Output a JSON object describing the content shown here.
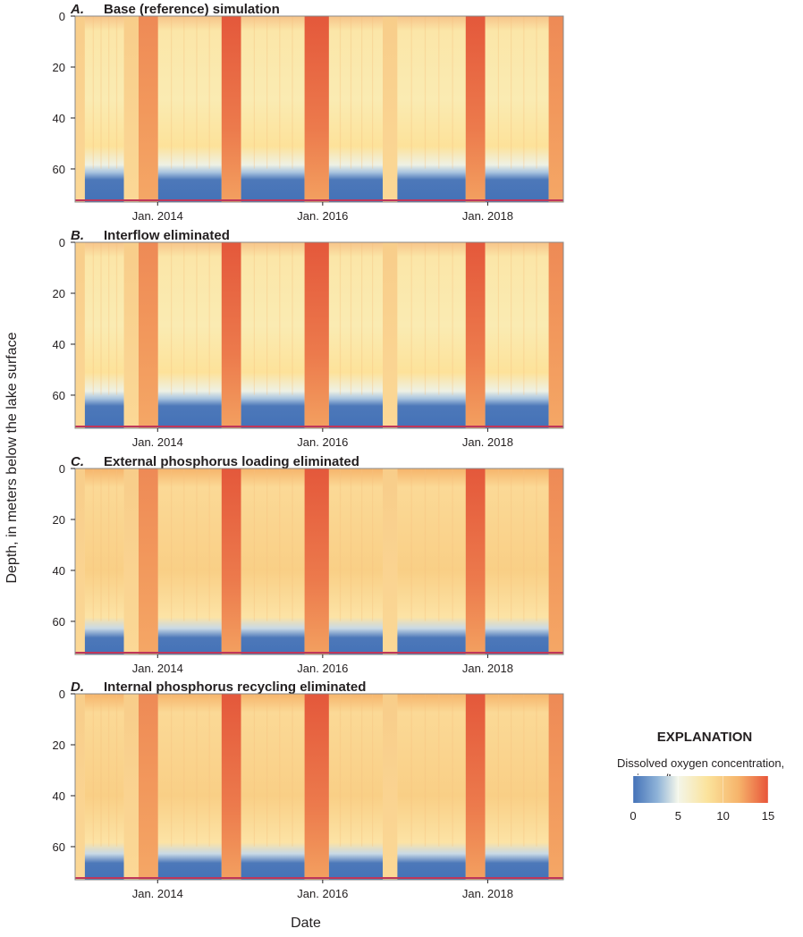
{
  "figure": {
    "ylabel": "Depth, in meters below the lake surface",
    "xlabel": "Date"
  },
  "legend": {
    "title": "EXPLANATION",
    "description_line1": "Dissolved oxygen concentration,",
    "description_line2": "in mg/L",
    "range": [
      0,
      15
    ],
    "ticks": [
      "0",
      "5",
      "10",
      "15"
    ],
    "tick_values": [
      0,
      5,
      10,
      15
    ],
    "colormap": [
      "#4472b8",
      "#8fb3d8",
      "#f3f6ea",
      "#fbe39c",
      "#f6b46b",
      "#e8553a"
    ]
  },
  "chart_data": [
    {
      "type": "heatmap",
      "letter": "A.",
      "title": "Base (reference) simulation",
      "x_range": [
        "2013-01",
        "2018-12"
      ],
      "x_ticks": [
        "Jan. 2014",
        "Jan. 2016",
        "Jan. 2018"
      ],
      "y_range": [
        73,
        0
      ],
      "y_ticks": [
        "0",
        "20",
        "40",
        "60"
      ],
      "y_tick_values": [
        0,
        20,
        40,
        60
      ],
      "value": "dissolved oxygen, mg/L"
    },
    {
      "type": "heatmap",
      "letter": "B.",
      "title": "Interflow eliminated",
      "x_range": [
        "2013-01",
        "2018-12"
      ],
      "x_ticks": [
        "Jan. 2014",
        "Jan. 2016",
        "Jan. 2018"
      ],
      "y_range": [
        73,
        0
      ],
      "y_ticks": [
        "0",
        "20",
        "40",
        "60"
      ],
      "y_tick_values": [
        0,
        20,
        40,
        60
      ],
      "value": "dissolved oxygen, mg/L"
    },
    {
      "type": "heatmap",
      "letter": "C.",
      "title": "External phosphorus loading eliminated",
      "x_range": [
        "2013-01",
        "2018-12"
      ],
      "x_ticks": [
        "Jan. 2014",
        "Jan. 2016",
        "Jan. 2018"
      ],
      "y_range": [
        73,
        0
      ],
      "y_ticks": [
        "0",
        "20",
        "40",
        "60"
      ],
      "y_tick_values": [
        0,
        20,
        40,
        60
      ],
      "value": "dissolved oxygen, mg/L"
    },
    {
      "type": "heatmap",
      "letter": "D.",
      "title": "Internal phosphorus recycling eliminated",
      "x_range": [
        "2013-01",
        "2018-12"
      ],
      "x_ticks": [
        "Jan. 2014",
        "Jan. 2016",
        "Jan. 2018"
      ],
      "y_range": [
        73,
        0
      ],
      "y_ticks": [
        "0",
        "20",
        "40",
        "60"
      ],
      "y_tick_values": [
        0,
        20,
        40,
        60
      ],
      "value": "dissolved oxygen, mg/L"
    }
  ]
}
